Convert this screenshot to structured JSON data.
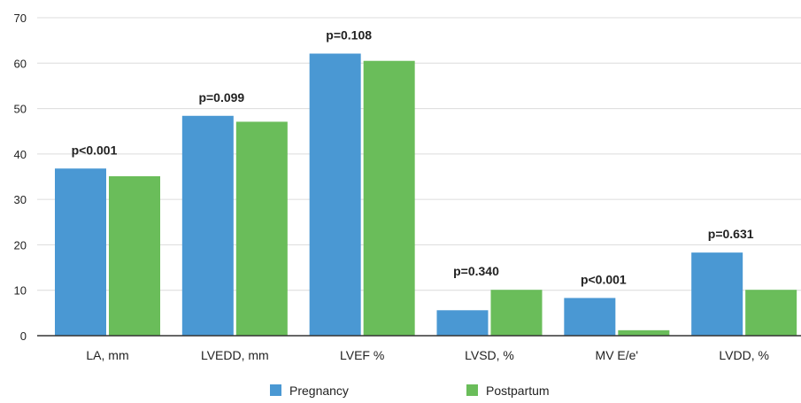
{
  "chart_data": {
    "type": "bar",
    "categories": [
      "LA, mm",
      "LVEDD, mm",
      "LVEF %",
      "LVSD, %",
      "MV E/e'",
      "LVDD, %"
    ],
    "series": [
      {
        "name": "Pregnancy",
        "color": "#4a98d3",
        "values": [
          36.8,
          48.4,
          62.1,
          5.6,
          8.3,
          18.3
        ]
      },
      {
        "name": "Postpartum",
        "color": "#6abd5a",
        "values": [
          35.1,
          47.1,
          60.5,
          10.1,
          1.2,
          10.1
        ]
      }
    ],
    "annotations": [
      "p<0.001",
      "p=0.099",
      "p=0.108",
      "p=0.340",
      "p<0.001",
      "p=0.631"
    ],
    "yticks": [
      "0",
      "10",
      "20",
      "30",
      "40",
      "50",
      "60",
      "70"
    ],
    "ylim": [
      0,
      70
    ],
    "grid": true,
    "legend_position": "bottom-center",
    "title": "",
    "xlabel": "",
    "ylabel": ""
  }
}
